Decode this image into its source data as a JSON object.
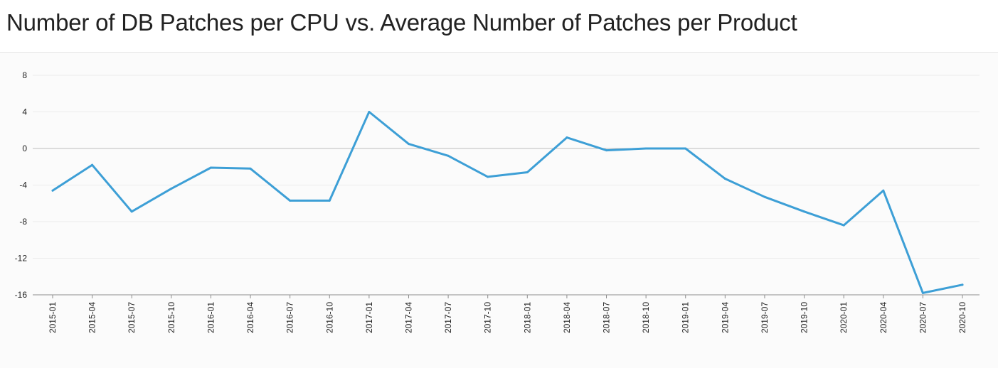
{
  "title": "Number of DB Patches per CPU vs. Average Number of Patches per Product",
  "chart_data": {
    "type": "line",
    "title": "Number of DB Patches per CPU vs. Average Number of Patches per Product",
    "xlabel": "",
    "ylabel": "",
    "ylim": [
      -16,
      8
    ],
    "yticks": [
      8,
      4,
      0,
      -4,
      -8,
      -12,
      -16
    ],
    "grid": true,
    "legend": "none",
    "line_color": "#3d9fd6",
    "categories": [
      "2015-01",
      "2015-04",
      "2015-07",
      "2015-10",
      "2016-01",
      "2016-04",
      "2016-07",
      "2016-10",
      "2017-01",
      "2017-04",
      "2017-07",
      "2017-10",
      "2018-01",
      "2018-04",
      "2018-07",
      "2018-10",
      "2019-01",
      "2019-04",
      "2019-07",
      "2019-10",
      "2020-01",
      "2020-04",
      "2020-07",
      "2020-10"
    ],
    "series": [
      {
        "values": [
          -4.6,
          -1.8,
          -6.9,
          -4.4,
          -2.1,
          -2.2,
          -5.7,
          -5.7,
          4.0,
          0.5,
          -0.8,
          -3.1,
          -2.6,
          1.2,
          -0.2,
          0.0,
          0.0,
          -3.3,
          -5.3,
          -6.9,
          -8.4,
          -4.6,
          -15.8,
          -14.9
        ]
      }
    ]
  }
}
